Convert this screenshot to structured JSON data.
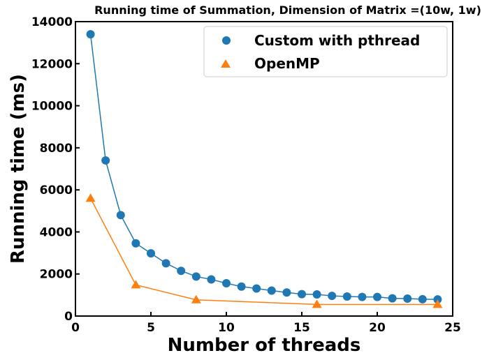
{
  "chart_data": {
    "type": "line",
    "title": "Running time of Summation, Dimension of Matrix =(10w, 1w)",
    "xlabel": "Number of threads",
    "ylabel": "Running time (ms)",
    "xlim": [
      0,
      25
    ],
    "ylim": [
      0,
      14000
    ],
    "xticks": [
      0,
      5,
      10,
      15,
      20,
      25
    ],
    "yticks": [
      0,
      2000,
      4000,
      6000,
      8000,
      10000,
      12000,
      14000
    ],
    "grid": false,
    "legend_position": "top-right",
    "series": [
      {
        "name": "Custom with pthread",
        "marker": "circle",
        "color": "#1f77b4",
        "x": [
          1,
          2,
          3,
          4,
          5,
          6,
          7,
          8,
          9,
          10,
          11,
          12,
          13,
          14,
          15,
          16,
          17,
          18,
          19,
          20,
          21,
          22,
          23,
          24
        ],
        "y": [
          13400,
          7400,
          4800,
          3460,
          2980,
          2510,
          2150,
          1880,
          1740,
          1560,
          1400,
          1310,
          1210,
          1120,
          1040,
          1030,
          960,
          930,
          910,
          910,
          840,
          830,
          800,
          790
        ]
      },
      {
        "name": "OpenMP",
        "marker": "triangle",
        "color": "#ff7f0e",
        "x": [
          1,
          4,
          8,
          16,
          24
        ],
        "y": [
          5600,
          1480,
          770,
          550,
          550
        ]
      }
    ]
  }
}
